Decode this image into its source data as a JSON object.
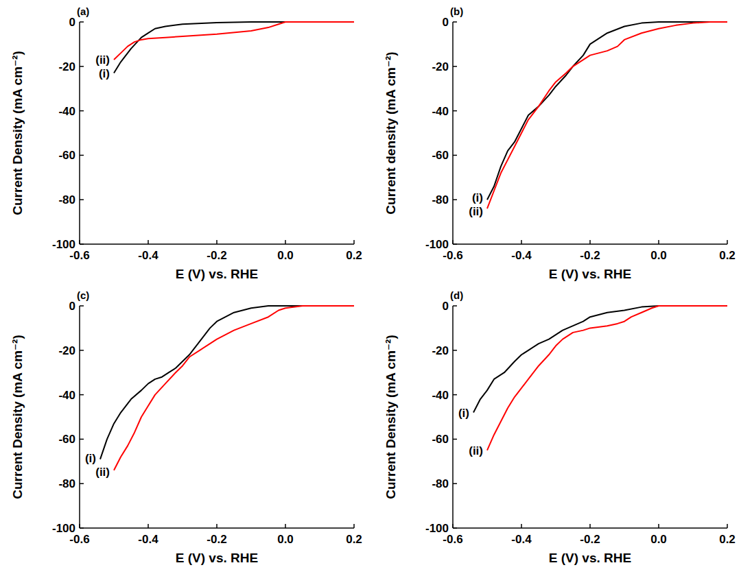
{
  "chart_data": [
    {
      "type": "line",
      "title": "(a)",
      "x_label": "E (V) vs. RHE",
      "y_label": "Current Density (mA cm⁻²)",
      "xlim": [
        -0.6,
        0.2
      ],
      "xticks": [
        -0.6,
        -0.4,
        -0.2,
        {
          "value": 0,
          "label": "0.0"
        },
        0.2
      ],
      "ylim": [
        -100,
        0
      ],
      "yticks": [
        -100,
        -80,
        -60,
        -40,
        -20,
        0
      ],
      "series": [
        {
          "name": "(i)",
          "color": "#000000",
          "x": [
            -0.5,
            -0.48,
            -0.45,
            -0.42,
            -0.4,
            -0.38,
            -0.35,
            -0.3,
            -0.2,
            -0.1,
            0.2
          ],
          "values": [
            -23,
            -18,
            -12,
            -7,
            -5,
            -3,
            -2,
            -1,
            -0.3,
            0,
            0
          ]
        },
        {
          "name": "(ii)",
          "color": "#ff0000",
          "x": [
            -0.5,
            -0.48,
            -0.46,
            -0.44,
            -0.42,
            -0.4,
            -0.35,
            -0.3,
            -0.2,
            -0.1,
            -0.05,
            -0.02,
            0,
            0.2
          ],
          "values": [
            -17,
            -14,
            -11,
            -9,
            -8,
            -7.5,
            -7,
            -6.5,
            -5.5,
            -4,
            -2.5,
            -1,
            0,
            0
          ]
        }
      ]
    },
    {
      "type": "line",
      "title": "(b)",
      "x_label": "E (V) vs. RHE",
      "y_label": "Current density (mA cm⁻²)",
      "xlim": [
        -0.6,
        0.2
      ],
      "xticks": [
        -0.6,
        -0.4,
        -0.2,
        {
          "value": 0,
          "label": "0.0"
        },
        0.2
      ],
      "ylim": [
        -100,
        0
      ],
      "yticks": [
        -100,
        -80,
        -60,
        -40,
        -20,
        0
      ],
      "series": [
        {
          "name": "(i)",
          "color": "#000000",
          "x": [
            -0.5,
            -0.48,
            -0.46,
            -0.44,
            -0.42,
            -0.4,
            -0.38,
            -0.35,
            -0.32,
            -0.3,
            -0.27,
            -0.25,
            -0.22,
            -0.2,
            -0.15,
            -0.1,
            -0.05,
            0,
            0.2
          ],
          "values": [
            -80,
            -74,
            -65,
            -58,
            -54,
            -48,
            -42,
            -38,
            -33,
            -29,
            -24,
            -20,
            -15,
            -10,
            -5,
            -2,
            -0.5,
            0,
            0
          ]
        },
        {
          "name": "(ii)",
          "color": "#ff0000",
          "x": [
            -0.5,
            -0.48,
            -0.46,
            -0.44,
            -0.42,
            -0.4,
            -0.38,
            -0.35,
            -0.32,
            -0.3,
            -0.27,
            -0.25,
            -0.22,
            -0.2,
            -0.15,
            -0.12,
            -0.1,
            -0.05,
            0,
            0.05,
            0.1,
            0.15,
            0.2
          ],
          "values": [
            -84,
            -76,
            -68,
            -62,
            -56,
            -50,
            -44,
            -38,
            -31,
            -27,
            -23,
            -20,
            -17,
            -15,
            -13,
            -11,
            -8,
            -5,
            -3,
            -1.5,
            -0.5,
            0,
            0
          ]
        }
      ]
    },
    {
      "type": "line",
      "title": "(c)",
      "x_label": "E (V) vs. RHE",
      "y_label": "Current Density (mA cm⁻²)",
      "xlim": [
        -0.6,
        0.2
      ],
      "xticks": [
        -0.6,
        -0.4,
        -0.2,
        {
          "value": 0,
          "label": "0.0"
        },
        0.2
      ],
      "ylim": [
        -100,
        0
      ],
      "yticks": [
        -100,
        -80,
        -60,
        -40,
        -20,
        0
      ],
      "series": [
        {
          "name": "(i)",
          "color": "#000000",
          "x": [
            -0.54,
            -0.52,
            -0.5,
            -0.48,
            -0.45,
            -0.42,
            -0.4,
            -0.38,
            -0.36,
            -0.34,
            -0.32,
            -0.3,
            -0.28,
            -0.26,
            -0.24,
            -0.22,
            -0.2,
            -0.15,
            -0.1,
            -0.05,
            0.2
          ],
          "values": [
            -69,
            -60,
            -53,
            -48,
            -42,
            -38,
            -35,
            -33,
            -32,
            -30,
            -28,
            -25,
            -22,
            -18,
            -14,
            -10,
            -7,
            -3,
            -1,
            0,
            0
          ]
        },
        {
          "name": "(ii)",
          "color": "#ff0000",
          "x": [
            -0.5,
            -0.48,
            -0.46,
            -0.44,
            -0.42,
            -0.4,
            -0.38,
            -0.35,
            -0.32,
            -0.3,
            -0.28,
            -0.25,
            -0.22,
            -0.2,
            -0.15,
            -0.1,
            -0.05,
            -0.02,
            0,
            0.05,
            0.2
          ],
          "values": [
            -74,
            -68,
            -63,
            -57,
            -50,
            -45,
            -40,
            -35,
            -30,
            -27,
            -23,
            -20,
            -17,
            -15,
            -11,
            -8,
            -5,
            -2,
            -1,
            0,
            0
          ]
        }
      ]
    },
    {
      "type": "line",
      "title": "(d)",
      "x_label": "E (V) vs. RHE",
      "y_label": "Current Density (mA cm⁻²)",
      "xlim": [
        -0.6,
        0.2
      ],
      "xticks": [
        -0.6,
        -0.4,
        -0.2,
        {
          "value": 0,
          "label": "0.0"
        },
        0.2
      ],
      "ylim": [
        -100,
        0
      ],
      "yticks": [
        -100,
        -80,
        -60,
        -40,
        -20,
        0
      ],
      "series": [
        {
          "name": "(i)",
          "color": "#000000",
          "x": [
            -0.54,
            -0.52,
            -0.5,
            -0.48,
            -0.45,
            -0.42,
            -0.4,
            -0.38,
            -0.35,
            -0.32,
            -0.3,
            -0.28,
            -0.25,
            -0.22,
            -0.2,
            -0.15,
            -0.1,
            -0.05,
            0,
            0.2
          ],
          "values": [
            -48,
            -42,
            -38,
            -33,
            -30,
            -25,
            -22,
            -20,
            -17,
            -15,
            -13,
            -11,
            -9,
            -7,
            -5,
            -3,
            -2,
            -0.5,
            0,
            0
          ]
        },
        {
          "name": "(ii)",
          "color": "#ff0000",
          "x": [
            -0.5,
            -0.48,
            -0.46,
            -0.44,
            -0.42,
            -0.4,
            -0.38,
            -0.35,
            -0.32,
            -0.3,
            -0.28,
            -0.25,
            -0.22,
            -0.2,
            -0.15,
            -0.12,
            -0.1,
            -0.08,
            -0.05,
            -0.02,
            0,
            0.2
          ],
          "values": [
            -65,
            -58,
            -52,
            -46,
            -41,
            -37,
            -33,
            -27,
            -22,
            -18,
            -15,
            -12,
            -11,
            -10,
            -9,
            -8,
            -7,
            -5,
            -3,
            -1,
            0,
            0
          ]
        }
      ]
    }
  ]
}
